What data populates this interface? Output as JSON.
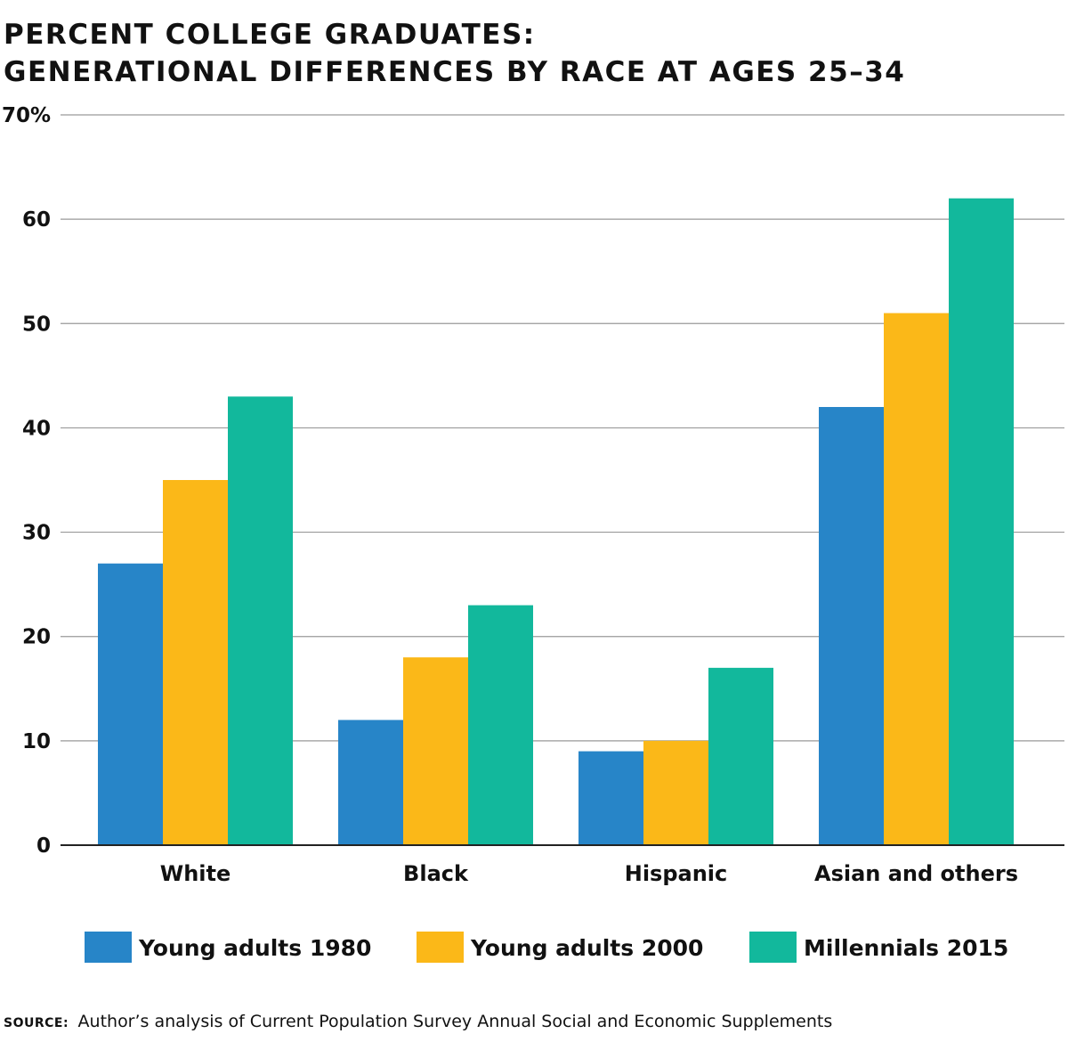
{
  "chart_data": {
    "type": "bar",
    "title_lines": [
      "PERCENT COLLEGE GRADUATES:",
      "GENERATIONAL DIFFERENCES BY RACE AT AGES 25–34"
    ],
    "categories": [
      "White",
      "Black",
      "Hispanic",
      "Asian and others"
    ],
    "series": [
      {
        "name": "Young adults 1980",
        "color": "#2785c8",
        "values": [
          27,
          12,
          9,
          42
        ]
      },
      {
        "name": "Young adults 2000",
        "color": "#fbb818",
        "values": [
          35,
          18,
          10,
          51
        ]
      },
      {
        "name": "Millennials 2015",
        "color": "#12b89c",
        "values": [
          43,
          23,
          17,
          62
        ]
      }
    ],
    "ylim": [
      0,
      70
    ],
    "y_ticks": [
      {
        "value": 0,
        "label": "0"
      },
      {
        "value": 10,
        "label": "10"
      },
      {
        "value": 20,
        "label": "20"
      },
      {
        "value": 30,
        "label": "30"
      },
      {
        "value": 40,
        "label": "40"
      },
      {
        "value": 50,
        "label": "50"
      },
      {
        "value": 60,
        "label": "60"
      },
      {
        "value": 70,
        "label": "70%"
      }
    ],
    "grid": true,
    "legend_position": "bottom",
    "xlabel": "",
    "ylabel": ""
  },
  "source": {
    "label": "SOURCE:",
    "text": "Author’s analysis of Current Population Survey Annual Social and Economic Supplements"
  }
}
